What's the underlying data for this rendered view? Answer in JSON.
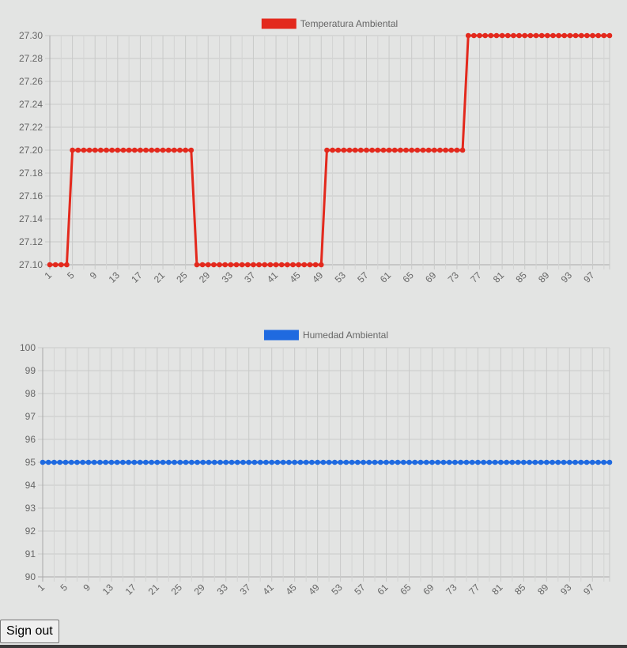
{
  "chart_data": [
    {
      "type": "line",
      "legend": "Temperatura Ambiental",
      "legend_position": "top-center",
      "color": "#e3291d",
      "grid": true,
      "x": {
        "start": 1,
        "end": 100
      },
      "x_tick_labels": [
        "1",
        "5",
        "9",
        "13",
        "17",
        "21",
        "25",
        "29",
        "33",
        "37",
        "41",
        "45",
        "49",
        "53",
        "57",
        "61",
        "65",
        "69",
        "73",
        "77",
        "81",
        "85",
        "89",
        "93",
        "97"
      ],
      "ylim": [
        27.1,
        27.3
      ],
      "y_tick_labels": [
        "27.30",
        "27.28",
        "27.26",
        "27.24",
        "27.22",
        "27.20",
        "27.18",
        "27.16",
        "27.14",
        "27.12",
        "27.10"
      ],
      "series": [
        {
          "name": "Temperatura Ambiental",
          "segments": [
            {
              "from": 1,
              "to": 4,
              "value": 27.1
            },
            {
              "from": 5,
              "to": 26,
              "value": 27.2
            },
            {
              "from": 27,
              "to": 49,
              "value": 27.1
            },
            {
              "from": 50,
              "to": 74,
              "value": 27.2
            },
            {
              "from": 75,
              "to": 100,
              "value": 27.3
            }
          ]
        }
      ]
    },
    {
      "type": "line",
      "legend": "Humedad Ambiental",
      "legend_position": "top-center",
      "color": "#1f6ae0",
      "grid": true,
      "x": {
        "start": 1,
        "end": 100
      },
      "x_tick_labels": [
        "1",
        "5",
        "9",
        "13",
        "17",
        "21",
        "25",
        "29",
        "33",
        "37",
        "41",
        "45",
        "49",
        "53",
        "57",
        "61",
        "65",
        "69",
        "73",
        "77",
        "81",
        "85",
        "89",
        "93",
        "97"
      ],
      "ylim": [
        90,
        100
      ],
      "y_tick_labels": [
        "100",
        "99",
        "98",
        "97",
        "96",
        "95",
        "94",
        "93",
        "92",
        "91",
        "90"
      ],
      "series": [
        {
          "name": "Humedad Ambiental",
          "segments": [
            {
              "from": 1,
              "to": 100,
              "value": 95
            }
          ]
        }
      ]
    }
  ],
  "signout_label": "Sign out"
}
